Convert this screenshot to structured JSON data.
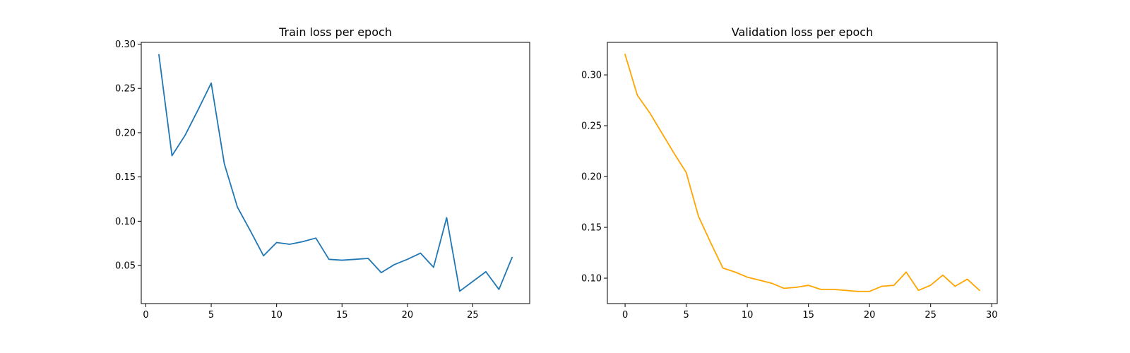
{
  "chart_data": [
    {
      "type": "line",
      "title": "Train loss per epoch",
      "xlabel": "",
      "ylabel": "",
      "xlim": [
        -0.35,
        29.35
      ],
      "ylim": [
        0.007,
        0.302
      ],
      "xticks": [
        0,
        5,
        10,
        15,
        20,
        25
      ],
      "xtick_labels": [
        "0",
        "5",
        "10",
        "15",
        "20",
        "25"
      ],
      "yticks": [
        0.05,
        0.1,
        0.15,
        0.2,
        0.25,
        0.3
      ],
      "ytick_labels": [
        "0.05",
        "0.10",
        "0.15",
        "0.20",
        "0.25",
        "0.30"
      ],
      "grid": false,
      "series": [
        {
          "color": "#1f77b4",
          "x": [
            1,
            2,
            3,
            4,
            5,
            6,
            7,
            8,
            9,
            10,
            11,
            12,
            13,
            14,
            15,
            16,
            17,
            18,
            19,
            20,
            21,
            22,
            23,
            24,
            25,
            26,
            27,
            28
          ],
          "y": [
            0.288,
            0.174,
            0.197,
            0.226,
            0.256,
            0.165,
            0.116,
            0.089,
            0.061,
            0.076,
            0.074,
            0.077,
            0.081,
            0.057,
            0.056,
            0.057,
            0.058,
            0.042,
            0.051,
            0.057,
            0.064,
            0.048,
            0.104,
            0.021,
            0.032,
            0.043,
            0.023,
            0.059
          ]
        }
      ]
    },
    {
      "type": "line",
      "title": "Validation loss per epoch",
      "xlabel": "",
      "ylabel": "",
      "xlim": [
        -1.45,
        30.45
      ],
      "ylim": [
        0.075,
        0.332
      ],
      "xticks": [
        0,
        5,
        10,
        15,
        20,
        25,
        30
      ],
      "xtick_labels": [
        "0",
        "5",
        "10",
        "15",
        "20",
        "25",
        "30"
      ],
      "yticks": [
        0.1,
        0.15,
        0.2,
        0.25,
        0.3
      ],
      "ytick_labels": [
        "0.10",
        "0.15",
        "0.20",
        "0.25",
        "0.30"
      ],
      "grid": false,
      "series": [
        {
          "color": "#ffa500",
          "x": [
            0,
            1,
            2,
            3,
            4,
            5,
            6,
            7,
            8,
            9,
            10,
            11,
            12,
            13,
            14,
            15,
            16,
            17,
            18,
            19,
            20,
            21,
            22,
            23,
            24,
            25,
            26,
            27,
            28,
            29
          ],
          "y": [
            0.32,
            0.28,
            0.263,
            0.243,
            0.223,
            0.204,
            0.161,
            0.135,
            0.11,
            0.106,
            0.101,
            0.098,
            0.095,
            0.09,
            0.091,
            0.093,
            0.089,
            0.089,
            0.088,
            0.087,
            0.087,
            0.092,
            0.093,
            0.106,
            0.088,
            0.093,
            0.103,
            0.092,
            0.099,
            0.088
          ]
        }
      ]
    }
  ]
}
